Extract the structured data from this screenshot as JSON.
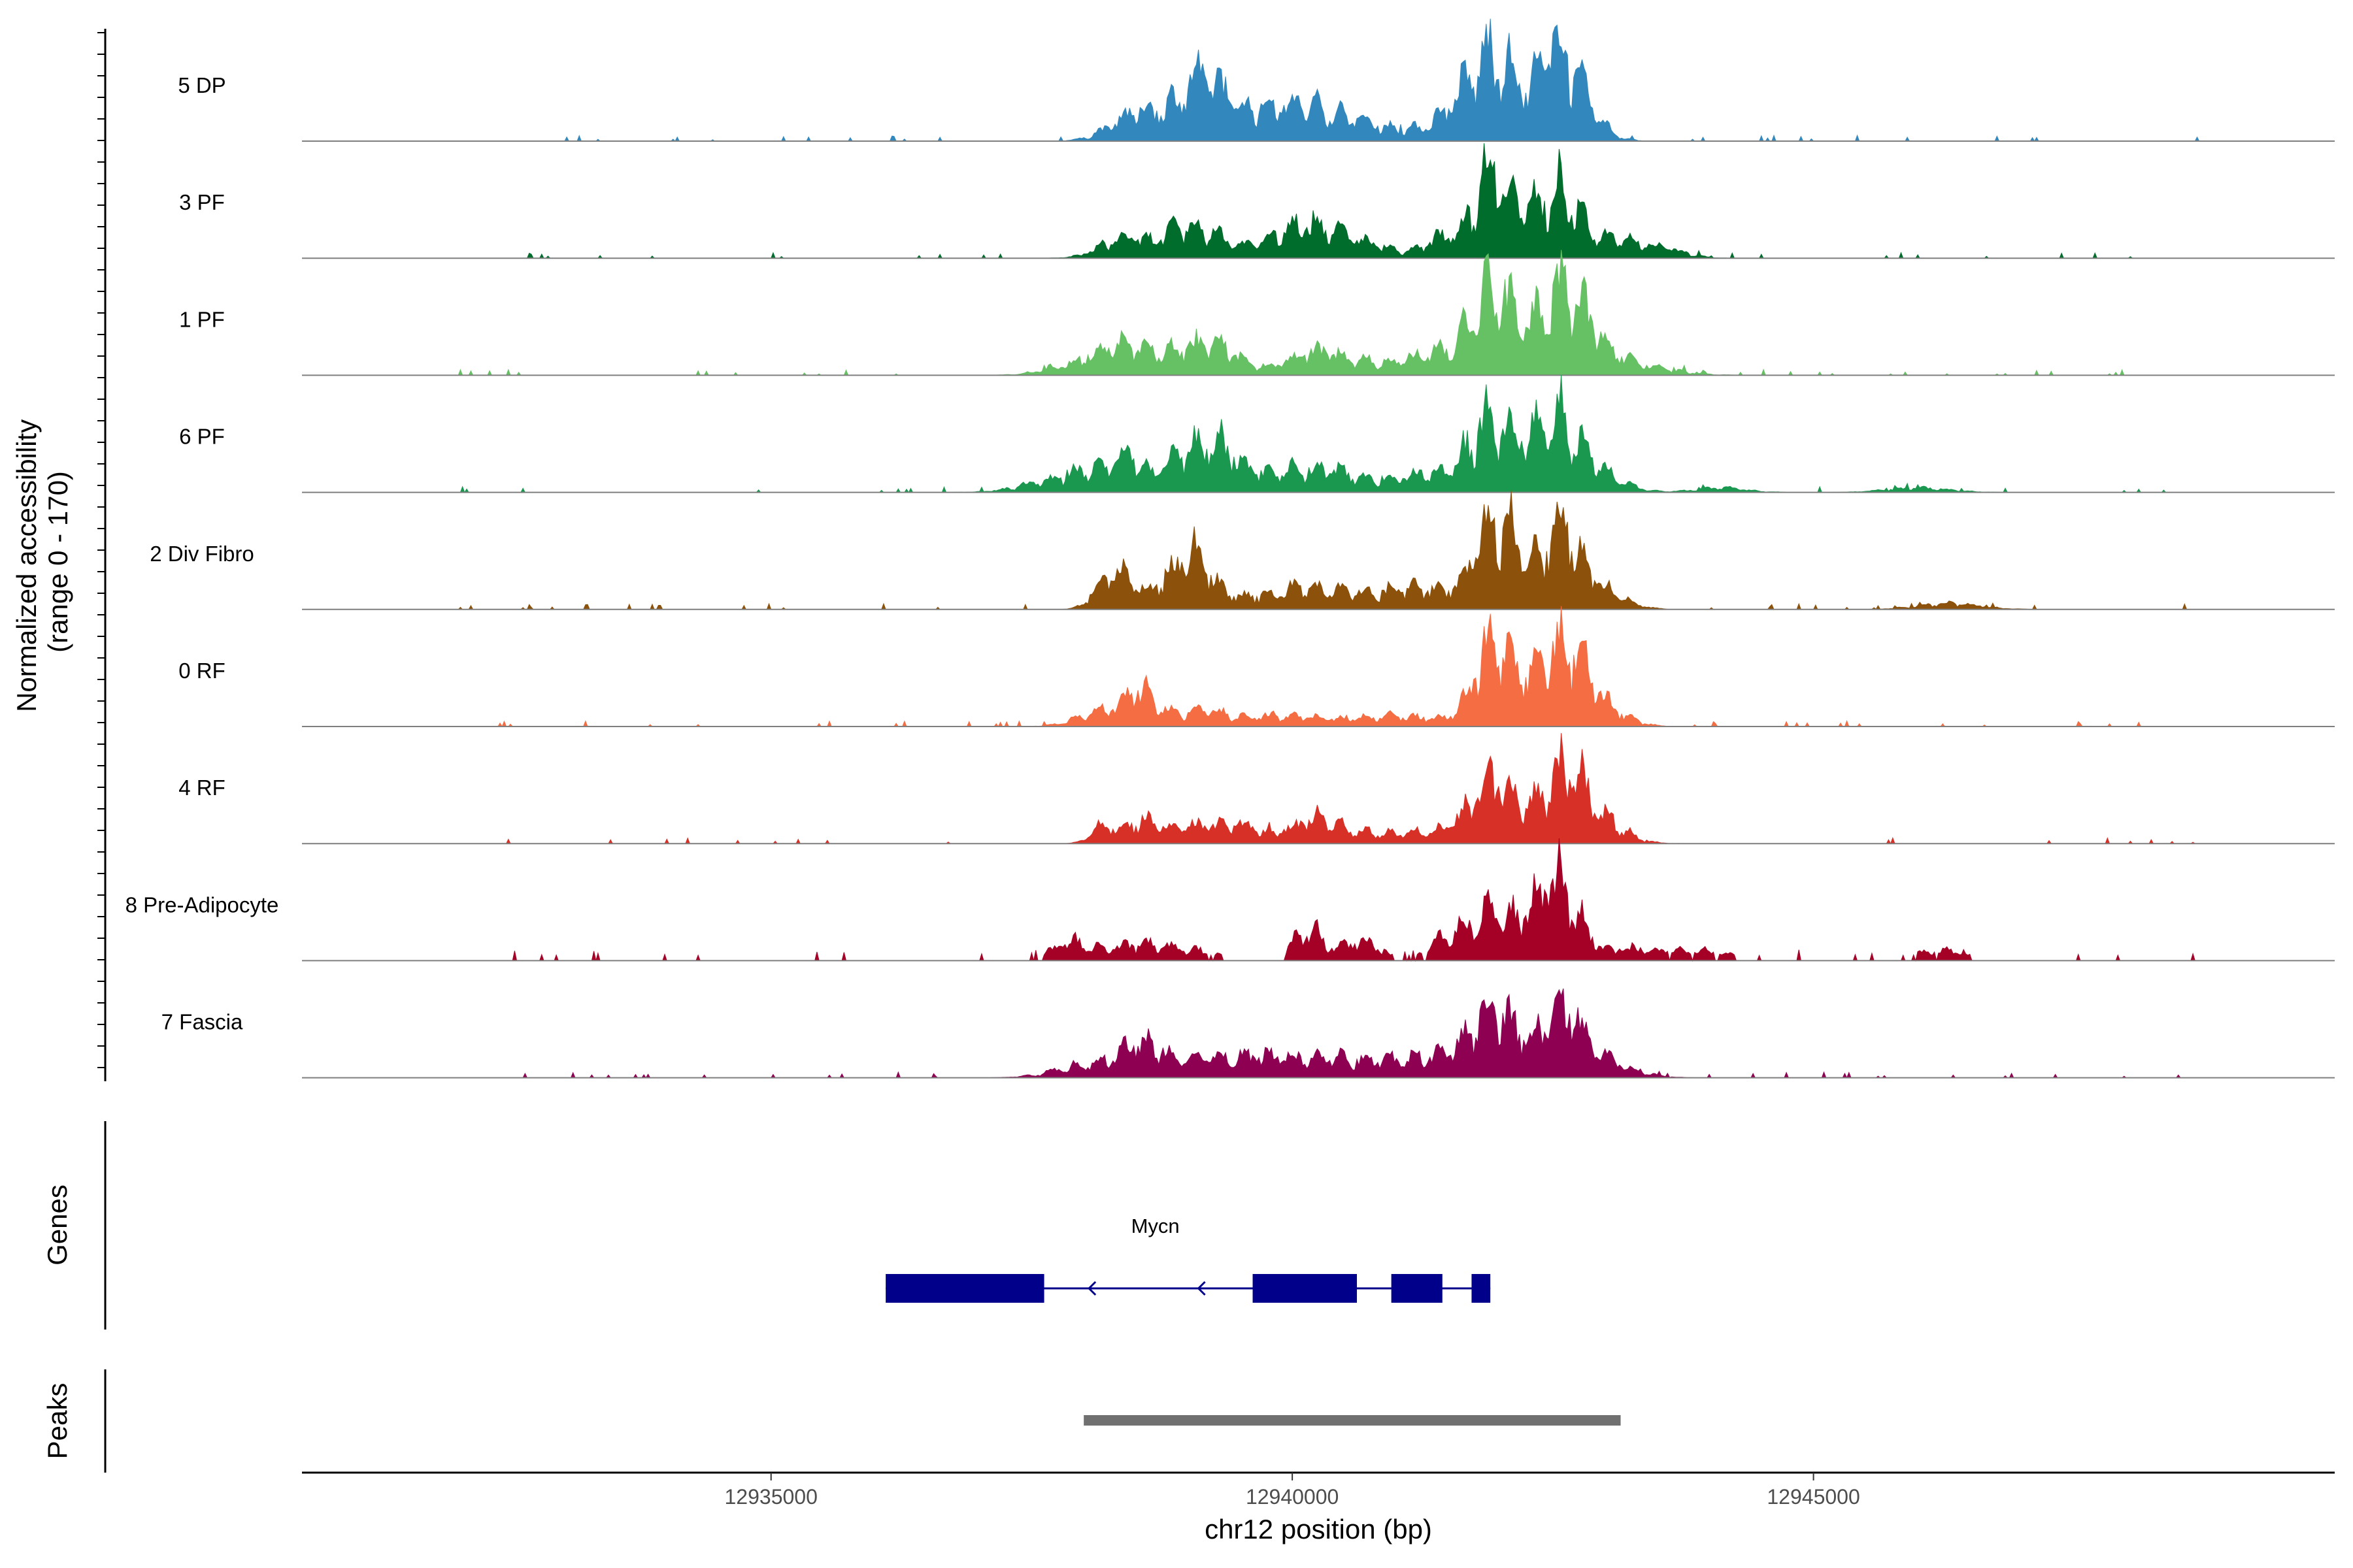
{
  "chart_data": {
    "type": "area",
    "title": "",
    "ylabel": "Normalized accessibility\n(range 0 - 170)",
    "ylim": [
      0,
      170
    ],
    "xlabel": "chr12 position (bp)",
    "xlim": [
      12930500,
      12950000
    ],
    "x_ticks": [
      12935000,
      12940000,
      12945000
    ],
    "x_tick_labels": [
      "12935000",
      "12940000",
      "12945000"
    ],
    "series": [
      {
        "name": "5 DP",
        "color": "#3288bd",
        "noise": 0.05,
        "sparse": false,
        "peaks": [
          [
            12938500,
            35,
            250
          ],
          [
            12938880,
            22,
            220
          ],
          [
            12939150,
            60,
            180
          ],
          [
            12939500,
            25,
            350
          ],
          [
            12940100,
            38,
            420
          ],
          [
            12940800,
            14,
            550
          ],
          [
            12941800,
            80,
            270
          ],
          [
            12942000,
            55,
            160
          ],
          [
            12942500,
            90,
            170
          ],
          [
            12942700,
            55,
            220
          ]
        ]
      },
      {
        "name": "3 PF",
        "color": "#006d2c",
        "noise": 0.04,
        "sparse": false,
        "peaks": [
          [
            12938400,
            28,
            230
          ],
          [
            12938900,
            32,
            160
          ],
          [
            12939200,
            28,
            160
          ],
          [
            12939800,
            20,
            350
          ],
          [
            12940200,
            33,
            250
          ],
          [
            12940700,
            18,
            300
          ],
          [
            12941500,
            32,
            180
          ],
          [
            12941900,
            95,
            140
          ],
          [
            12942200,
            60,
            260
          ],
          [
            12942600,
            70,
            170
          ],
          [
            12943100,
            25,
            250
          ],
          [
            12943600,
            10,
            200
          ]
        ]
      },
      {
        "name": "1 PF",
        "color": "#66c164",
        "noise": 0.06,
        "sparse": false,
        "peaks": [
          [
            12937900,
            15,
            260
          ],
          [
            12938400,
            45,
            200
          ],
          [
            12938900,
            30,
            200
          ],
          [
            12939300,
            38,
            200
          ],
          [
            12940200,
            27,
            270
          ],
          [
            12940800,
            16,
            400
          ],
          [
            12941500,
            30,
            260
          ],
          [
            12941900,
            88,
            180
          ],
          [
            12942150,
            45,
            200
          ],
          [
            12942600,
            95,
            200
          ],
          [
            12942900,
            35,
            300
          ],
          [
            12943500,
            6,
            300
          ]
        ]
      },
      {
        "name": "6 PF",
        "color": "#1b9850",
        "noise": 0.06,
        "sparse": false,
        "peaks": [
          [
            12937700,
            15,
            300
          ],
          [
            12938100,
            25,
            200
          ],
          [
            12938450,
            45,
            140
          ],
          [
            12938950,
            48,
            180
          ],
          [
            12939300,
            55,
            180
          ],
          [
            12939800,
            22,
            300
          ],
          [
            12940400,
            28,
            350
          ],
          [
            12941300,
            25,
            250
          ],
          [
            12941850,
            85,
            180
          ],
          [
            12942200,
            50,
            200
          ],
          [
            12942550,
            88,
            180
          ],
          [
            12942900,
            30,
            250
          ],
          [
            12944100,
            6,
            250
          ],
          [
            12946000,
            6,
            300
          ]
        ]
      },
      {
        "name": "2 Div Fibro",
        "color": "#8c510a",
        "noise": 0.06,
        "sparse": false,
        "peaks": [
          [
            12938300,
            48,
            160
          ],
          [
            12938750,
            25,
            180
          ],
          [
            12939050,
            60,
            170
          ],
          [
            12939400,
            15,
            300
          ],
          [
            12940100,
            25,
            300
          ],
          [
            12940700,
            18,
            350
          ],
          [
            12941300,
            25,
            250
          ],
          [
            12941900,
            100,
            180
          ],
          [
            12942150,
            55,
            200
          ],
          [
            12942600,
            100,
            160
          ],
          [
            12942900,
            30,
            250
          ],
          [
            12946300,
            8,
            300
          ]
        ]
      },
      {
        "name": "0 RF",
        "color": "#f46d43",
        "noise": 0.05,
        "sparse": false,
        "peaks": [
          [
            12938200,
            20,
            250
          ],
          [
            12938550,
            42,
            150
          ],
          [
            12939100,
            20,
            250
          ],
          [
            12939900,
            14,
            400
          ],
          [
            12941000,
            14,
            400
          ],
          [
            12941900,
            85,
            180
          ],
          [
            12942150,
            40,
            250
          ],
          [
            12942600,
            92,
            200
          ],
          [
            12942900,
            30,
            250
          ]
        ]
      },
      {
        "name": "4 RF",
        "color": "#d73027",
        "noise": 0.05,
        "sparse": false,
        "peaks": [
          [
            12938200,
            25,
            120
          ],
          [
            12938550,
            28,
            150
          ],
          [
            12939000,
            20,
            250
          ],
          [
            12939500,
            22,
            250
          ],
          [
            12940200,
            28,
            200
          ],
          [
            12940600,
            14,
            300
          ],
          [
            12941400,
            18,
            350
          ],
          [
            12941900,
            75,
            180
          ],
          [
            12942150,
            30,
            200
          ],
          [
            12942600,
            88,
            200
          ],
          [
            12942900,
            30,
            250
          ]
        ]
      },
      {
        "name": "8 Pre-Adipocyte",
        "color": "#a50026",
        "noise": 0.08,
        "sparse": true,
        "peaks": [
          [
            12937900,
            25,
            200
          ],
          [
            12938500,
            20,
            220
          ],
          [
            12939000,
            15,
            250
          ],
          [
            12940150,
            45,
            130
          ],
          [
            12940650,
            28,
            180
          ],
          [
            12941500,
            28,
            180
          ],
          [
            12941900,
            60,
            200
          ],
          [
            12942350,
            55,
            200
          ],
          [
            12942600,
            80,
            180
          ],
          [
            12943300,
            15,
            300
          ],
          [
            12944000,
            12,
            250
          ],
          [
            12946200,
            14,
            250
          ]
        ]
      },
      {
        "name": "7 Fascia",
        "color": "#8e0152",
        "noise": 0.07,
        "sparse": false,
        "peaks": [
          [
            12938000,
            15,
            300
          ],
          [
            12938500,
            40,
            200
          ],
          [
            12938950,
            20,
            300
          ],
          [
            12939600,
            25,
            300
          ],
          [
            12940300,
            25,
            350
          ],
          [
            12941000,
            15,
            350
          ],
          [
            12941500,
            22,
            350
          ],
          [
            12941900,
            65,
            200
          ],
          [
            12942150,
            30,
            250
          ],
          [
            12942600,
            75,
            180
          ],
          [
            12942900,
            25,
            300
          ]
        ]
      }
    ],
    "genes": [
      {
        "name": "Mycn",
        "strand": "-",
        "start": 12936100,
        "end": 12941900,
        "exons": [
          [
            12936100,
            12937620
          ],
          [
            12939620,
            12940620
          ],
          [
            12940950,
            12941440
          ],
          [
            12941720,
            12941900
          ]
        ]
      }
    ],
    "peaks_track": [
      {
        "start": 12938000,
        "end": 12943150
      }
    ],
    "genes_label": "Genes",
    "peaks_label": "Peaks"
  }
}
